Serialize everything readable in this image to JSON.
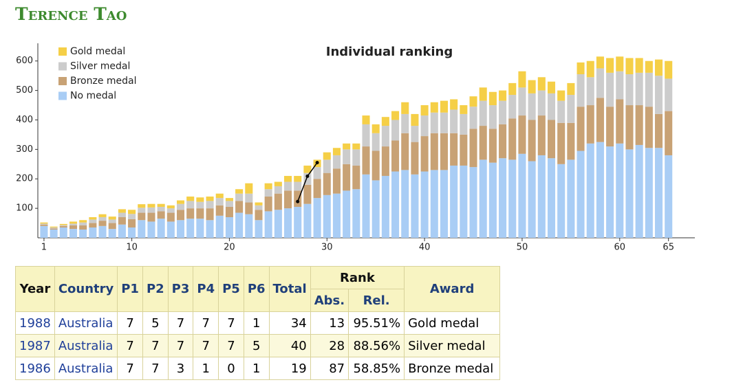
{
  "header": {
    "title": "Terence Tao"
  },
  "chart_data": {
    "type": "stacked_bar",
    "title": "Individual ranking",
    "x": [
      1,
      2,
      3,
      4,
      5,
      6,
      7,
      8,
      9,
      10,
      11,
      12,
      13,
      14,
      15,
      16,
      17,
      18,
      19,
      20,
      21,
      22,
      23,
      24,
      25,
      26,
      27,
      28,
      29,
      30,
      31,
      32,
      33,
      34,
      35,
      36,
      37,
      38,
      39,
      40,
      41,
      42,
      43,
      44,
      45,
      46,
      47,
      48,
      49,
      50,
      51,
      52,
      53,
      54,
      55,
      56,
      57,
      58,
      59,
      60,
      61,
      62,
      63,
      64,
      65
    ],
    "series": [
      {
        "name": "Gold medal",
        "color": "#f5cf47",
        "values": [
          4,
          3,
          4,
          7,
          8,
          8,
          10,
          10,
          12,
          14,
          12,
          12,
          10,
          10,
          12,
          15,
          15,
          15,
          15,
          10,
          15,
          35,
          10,
          20,
          15,
          20,
          20,
          25,
          25,
          25,
          25,
          20,
          20,
          30,
          30,
          30,
          30,
          40,
          40,
          35,
          35,
          40,
          35,
          30,
          35,
          45,
          45,
          35,
          40,
          55,
          45,
          45,
          40,
          35,
          40,
          40,
          55,
          40,
          50,
          50,
          55,
          50,
          40,
          55,
          60
        ]
      },
      {
        "name": "Silver medal",
        "color": "#cccccc",
        "values": [
          3,
          3,
          3,
          6,
          10,
          12,
          12,
          12,
          15,
          18,
          17,
          18,
          15,
          15,
          20,
          25,
          22,
          25,
          25,
          20,
          25,
          30,
          15,
          25,
          25,
          30,
          30,
          40,
          40,
          45,
          45,
          50,
          55,
          75,
          60,
          70,
          70,
          65,
          55,
          70,
          70,
          70,
          80,
          70,
          75,
          85,
          80,
          80,
          80,
          95,
          90,
          85,
          90,
          75,
          95,
          110,
          95,
          100,
          115,
          95,
          105,
          110,
          115,
          130,
          110
        ]
      },
      {
        "name": "Bronze medal",
        "color": "#c8a275",
        "values": [
          5,
          4,
          5,
          12,
          14,
          15,
          18,
          20,
          25,
          28,
          25,
          30,
          25,
          30,
          35,
          35,
          35,
          40,
          35,
          35,
          40,
          40,
          35,
          50,
          55,
          60,
          55,
          65,
          65,
          75,
          85,
          90,
          80,
          95,
          100,
          100,
          105,
          125,
          110,
          120,
          125,
          125,
          110,
          105,
          130,
          115,
          115,
          115,
          140,
          130,
          140,
          135,
          130,
          140,
          125,
          150,
          130,
          150,
          135,
          150,
          150,
          135,
          140,
          115,
          150
        ]
      },
      {
        "name": "No medal",
        "color": "#a9cdf5",
        "values": [
          40,
          28,
          35,
          30,
          28,
          35,
          40,
          30,
          45,
          35,
          60,
          55,
          65,
          55,
          60,
          65,
          65,
          60,
          75,
          70,
          85,
          80,
          60,
          90,
          95,
          100,
          105,
          115,
          135,
          145,
          150,
          160,
          165,
          215,
          195,
          210,
          225,
          230,
          215,
          225,
          230,
          230,
          245,
          245,
          240,
          265,
          255,
          270,
          265,
          285,
          260,
          280,
          270,
          250,
          265,
          295,
          320,
          325,
          310,
          320,
          300,
          315,
          305,
          305,
          280
        ]
      }
    ],
    "rank_line": {
      "x": [
        27,
        28,
        29
      ],
      "values": [
        123,
        209,
        255
      ]
    },
    "xlim": [
      0.37,
      67.7
    ],
    "xticks": [
      1,
      10,
      20,
      30,
      40,
      50,
      60,
      65
    ],
    "ylim": [
      0,
      660
    ],
    "yticks": [
      100,
      200,
      300,
      400,
      500,
      600
    ],
    "legend": "top-left",
    "grid": false
  },
  "table": {
    "columns": [
      "Year",
      "Country",
      "P1",
      "P2",
      "P3",
      "P4",
      "P5",
      "P6",
      "Total"
    ],
    "rank_header": "Rank",
    "rank_columns": [
      "Abs.",
      "Rel."
    ],
    "award_header": "Award",
    "rows": [
      [
        1988,
        "Australia",
        7,
        5,
        7,
        7,
        7,
        1,
        34,
        13,
        "95.51%",
        "Gold medal"
      ],
      [
        1987,
        "Australia",
        7,
        7,
        7,
        7,
        7,
        5,
        40,
        28,
        "88.56%",
        "Silver medal"
      ],
      [
        1986,
        "Australia",
        7,
        7,
        3,
        1,
        0,
        1,
        19,
        87,
        "58.85%",
        "Bronze medal"
      ]
    ]
  }
}
